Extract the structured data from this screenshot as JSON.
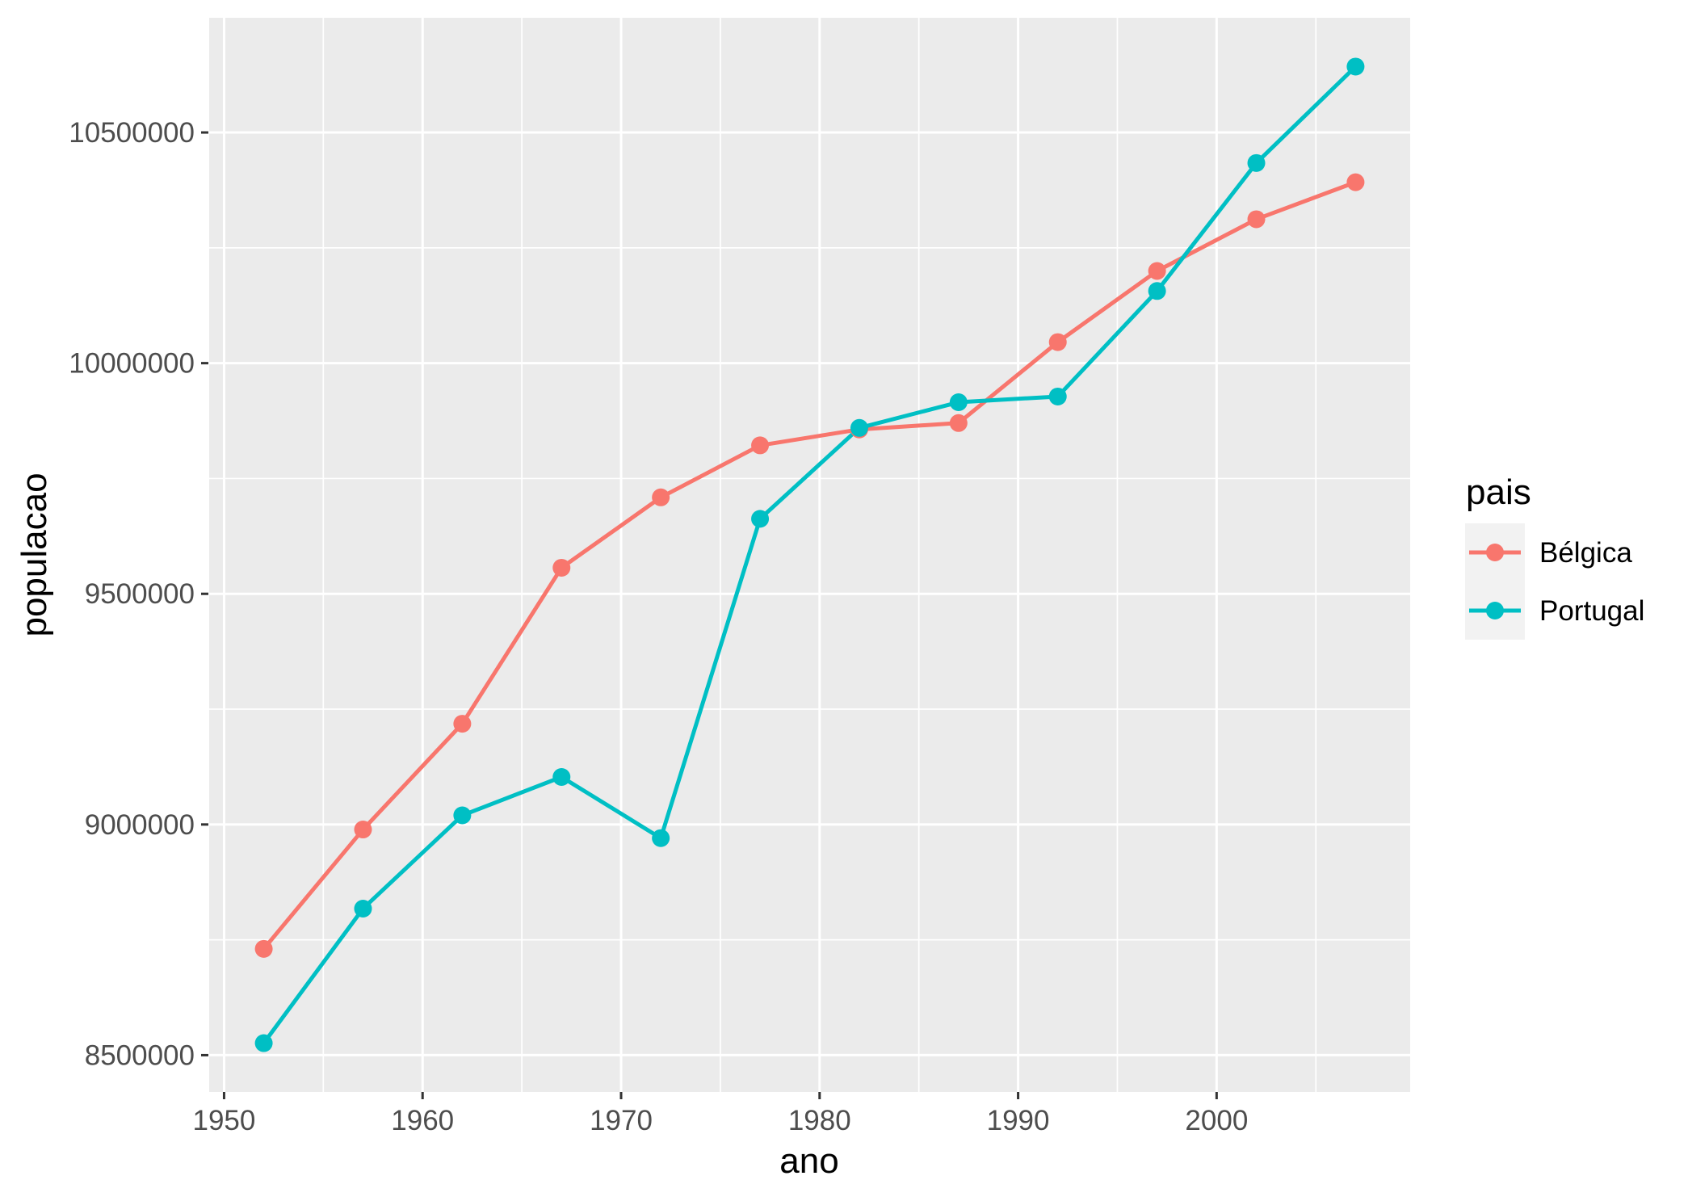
{
  "legend": {
    "title": "pais",
    "items": [
      {
        "label": "Bélgica",
        "color": "#F8766D"
      },
      {
        "label": "Portugal",
        "color": "#00BFC4"
      }
    ]
  },
  "chart_data": {
    "type": "line",
    "title": "",
    "xlabel": "ano",
    "ylabel": "populacao",
    "x": [
      1952,
      1957,
      1962,
      1967,
      1972,
      1977,
      1982,
      1987,
      1992,
      1997,
      2002,
      2007
    ],
    "series": [
      {
        "name": "Bélgica",
        "color": "#F8766D",
        "values": [
          8730405,
          8989111,
          9218400,
          9556500,
          9709100,
          9821800,
          9856303,
          9870200,
          10045622,
          10199787,
          10311970,
          10392226
        ]
      },
      {
        "name": "Portugal",
        "color": "#00BFC4",
        "values": [
          8526050,
          8817650,
          9019800,
          9103000,
          8970450,
          9662600,
          9859650,
          9915289,
          9927680,
          10156415,
          10433867,
          10642836
        ]
      }
    ],
    "x_major_ticks": [
      1950,
      1960,
      1970,
      1980,
      1990,
      2000
    ],
    "x_minor_ticks": [
      1955,
      1965,
      1975,
      1985,
      1995,
      2005
    ],
    "y_major_ticks": [
      8500000,
      9000000,
      9500000,
      10000000,
      10500000
    ],
    "y_minor_ticks": [
      8750000,
      9250000,
      9750000,
      10250000
    ],
    "xlim": [
      1949.25,
      2009.75
    ],
    "ylim": [
      8420211,
      10748675
    ],
    "grid": true,
    "markers": true,
    "legend_position": "right",
    "theme": {
      "panel_background": "#EBEBEB",
      "grid_color": "#FFFFFF",
      "tick_mark_color": "#333333",
      "tick_label_color": "#4D4D4D",
      "title_color": "#000000",
      "legend_key_background": "#F2F2F2"
    }
  }
}
